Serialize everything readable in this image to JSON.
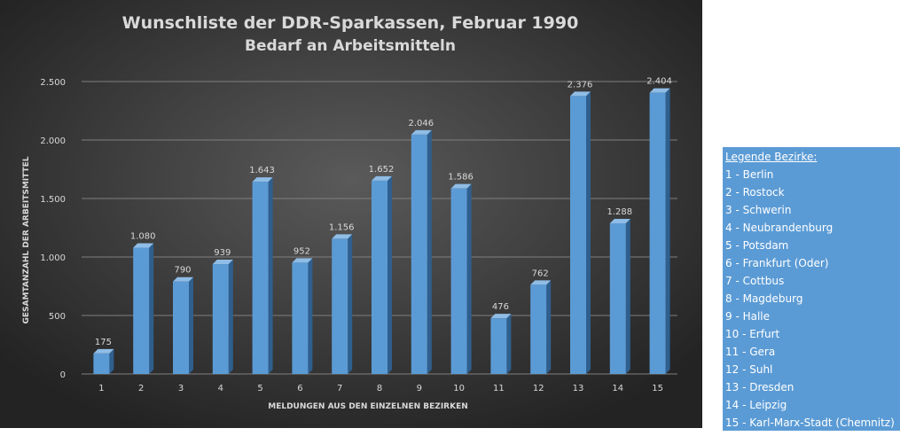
{
  "chart_data": {
    "type": "bar",
    "title": "Wunschliste der DDR-Sparkassen, Februar 1990",
    "subtitle": "Bedarf an Arbeitsmitteln",
    "xlabel": "MELDUNGEN AUS DEN EINZELNEN BEZIRKEN",
    "ylabel": "GESAMTANZAHL DER ARBEITSMITTEL",
    "categories": [
      "1",
      "2",
      "3",
      "4",
      "5",
      "6",
      "7",
      "8",
      "9",
      "10",
      "11",
      "12",
      "13",
      "14",
      "15"
    ],
    "values": [
      175,
      1080,
      790,
      939,
      1643,
      952,
      1156,
      1652,
      2046,
      1586,
      476,
      762,
      2376,
      1288,
      2404
    ],
    "value_labels": [
      "175",
      "1.080",
      "790",
      "939",
      "1.643",
      "952",
      "1.156",
      "1.652",
      "2.046",
      "1.586",
      "476",
      "762",
      "2.376",
      "1.288",
      "2.404"
    ],
    "ylim": [
      0,
      2500
    ],
    "yticks": [
      0,
      500,
      1000,
      1500,
      2000,
      2500
    ],
    "ytick_labels": [
      "0",
      "500",
      "1.000",
      "1.500",
      "2.000",
      "2.500"
    ],
    "grid": true,
    "bar_style": "3d",
    "legend_placement": "right"
  },
  "legend": {
    "title": "Legende Bezirke:",
    "items": [
      "1 - Berlin",
      "2 - Rostock",
      "3 - Schwerin",
      "4 - Neubrandenburg",
      "5 - Potsdam",
      "6 - Frankfurt (Oder)",
      "7 - Cottbus",
      "8 - Magdeburg",
      "9 - Halle",
      "10 - Erfurt",
      "11 - Gera",
      "12 - Suhl",
      "13 - Dresden",
      "14 - Leipzig",
      "15 - Karl-Marx-Stadt (Chemnitz)"
    ]
  },
  "colors": {
    "background_dark": "#262626",
    "background_light": "#595959",
    "bar_front": "#5b9bd5",
    "bar_side": "#2e5f8e",
    "bar_top": "#8fbde6",
    "text": "#d9d9d9",
    "grid": "#7f7f7f",
    "legend_bg": "#5b9bd5"
  }
}
